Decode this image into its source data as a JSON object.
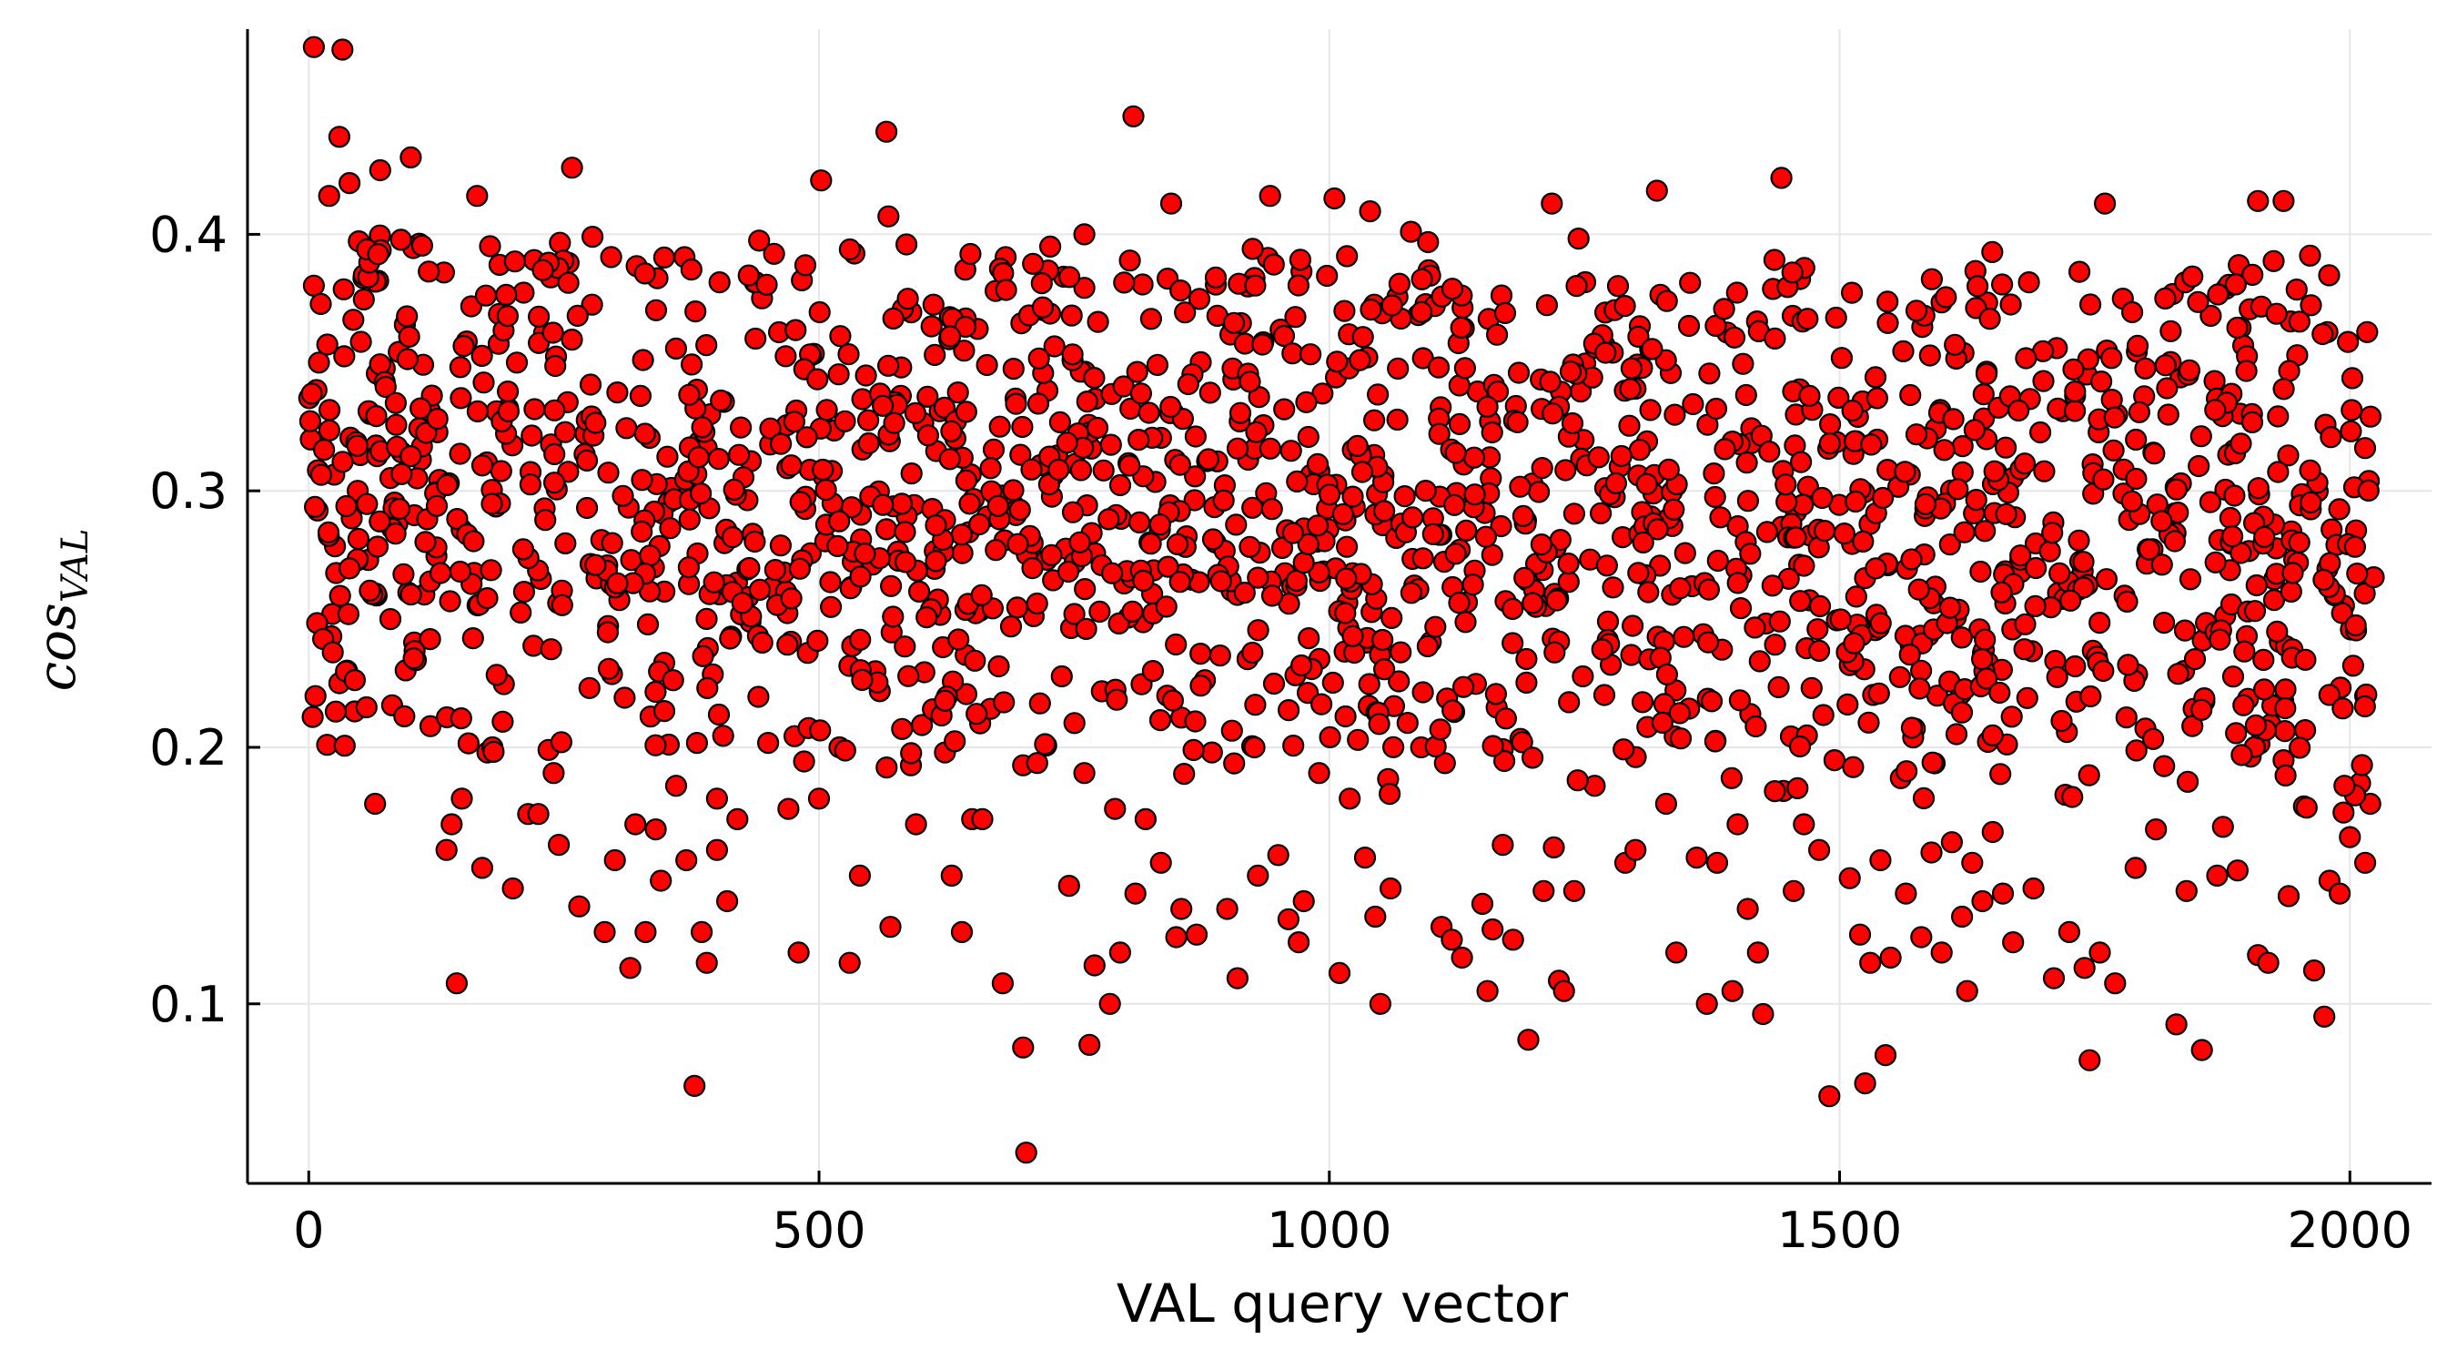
{
  "chart_data": {
    "type": "scatter",
    "title": "",
    "xlabel": "VAL query vector",
    "ylabel": "cos",
    "ylabel_subscript": "VAL",
    "xlim": [
      -60,
      2080
    ],
    "ylim": [
      0.03,
      0.48
    ],
    "xticks": [
      0,
      500,
      1000,
      1500,
      2000
    ],
    "xtick_labels": [
      "0",
      "500",
      "1000",
      "1500",
      "2000"
    ],
    "yticks": [
      0.1,
      0.2,
      0.3,
      0.4
    ],
    "ytick_labels": [
      "0.1",
      "0.2",
      "0.3",
      "0.4"
    ],
    "grid": true,
    "legend": "none",
    "marker_color": "#ff0000",
    "marker_edge_color": "#000000",
    "series": [
      {
        "n_points": 2023,
        "points": [
          [
            5,
            0.473
          ],
          [
            33,
            0.472
          ],
          [
            808,
            0.446
          ],
          [
            566,
            0.44
          ],
          [
            30,
            0.438
          ],
          [
            100,
            0.43
          ],
          [
            258,
            0.426
          ],
          [
            20,
            0.415
          ],
          [
            165,
            0.415
          ],
          [
            502,
            0.421
          ],
          [
            1443,
            0.422
          ],
          [
            1321,
            0.417
          ],
          [
            1935,
            0.413
          ],
          [
            1760,
            0.412
          ],
          [
            1005,
            0.414
          ],
          [
            942,
            0.415
          ],
          [
            1218,
            0.412
          ],
          [
            845,
            0.412
          ],
          [
            1910,
            0.413
          ],
          [
            568,
            0.407
          ],
          [
            1080,
            0.401
          ],
          [
            760,
            0.4
          ],
          [
            1040,
            0.409
          ],
          [
            5,
            0.38
          ],
          [
            40,
            0.42
          ],
          [
            70,
            0.425
          ],
          [
            10,
            0.35
          ],
          [
            60,
            0.33
          ],
          [
            2,
            0.32
          ],
          [
            15,
            0.316
          ],
          [
            48,
            0.3
          ],
          [
            80,
            0.305
          ],
          [
            23,
            0.252
          ],
          [
            30,
            0.225
          ],
          [
            45,
            0.214
          ],
          [
            18,
            0.201
          ],
          [
            65,
            0.178
          ],
          [
            80,
            0.25
          ],
          [
            95,
            0.23
          ],
          [
            105,
            0.234
          ],
          [
            150,
            0.18
          ],
          [
            140,
            0.17
          ],
          [
            135,
            0.16
          ],
          [
            145,
            0.108
          ],
          [
            170,
            0.153
          ],
          [
            175,
            0.198
          ],
          [
            180,
            0.2
          ],
          [
            190,
            0.21
          ],
          [
            200,
            0.145
          ],
          [
            215,
            0.174
          ],
          [
            225,
            0.174
          ],
          [
            235,
            0.199
          ],
          [
            240,
            0.19
          ],
          [
            245,
            0.162
          ],
          [
            265,
            0.138
          ],
          [
            290,
            0.128
          ],
          [
            300,
            0.156
          ],
          [
            315,
            0.114
          ],
          [
            320,
            0.17
          ],
          [
            330,
            0.128
          ],
          [
            340,
            0.168
          ],
          [
            345,
            0.148
          ],
          [
            360,
            0.185
          ],
          [
            370,
            0.156
          ],
          [
            378,
            0.068
          ],
          [
            385,
            0.128
          ],
          [
            390,
            0.116
          ],
          [
            400,
            0.16
          ],
          [
            410,
            0.14
          ],
          [
            420,
            0.172
          ],
          [
            400,
            0.18
          ],
          [
            470,
            0.176
          ],
          [
            480,
            0.12
          ],
          [
            500,
            0.18
          ],
          [
            520,
            0.2
          ],
          [
            530,
            0.116
          ],
          [
            540,
            0.15
          ],
          [
            570,
            0.13
          ],
          [
            590,
            0.193
          ],
          [
            595,
            0.17
          ],
          [
            630,
            0.15
          ],
          [
            640,
            0.128
          ],
          [
            650,
            0.172
          ],
          [
            660,
            0.172
          ],
          [
            680,
            0.108
          ],
          [
            700,
            0.083
          ],
          [
            703,
            0.042
          ],
          [
            700,
            0.193
          ],
          [
            745,
            0.146
          ],
          [
            760,
            0.19
          ],
          [
            765,
            0.084
          ],
          [
            770,
            0.115
          ],
          [
            785,
            0.1
          ],
          [
            790,
            0.176
          ],
          [
            795,
            0.12
          ],
          [
            810,
            0.143
          ],
          [
            820,
            0.172
          ],
          [
            835,
            0.155
          ],
          [
            850,
            0.126
          ],
          [
            855,
            0.137
          ],
          [
            870,
            0.127
          ],
          [
            885,
            0.198
          ],
          [
            900,
            0.137
          ],
          [
            910,
            0.11
          ],
          [
            930,
            0.15
          ],
          [
            950,
            0.158
          ],
          [
            960,
            0.133
          ],
          [
            970,
            0.124
          ],
          [
            975,
            0.14
          ],
          [
            990,
            0.19
          ],
          [
            1010,
            0.112
          ],
          [
            1020,
            0.18
          ],
          [
            1035,
            0.157
          ],
          [
            1045,
            0.134
          ],
          [
            1050,
            0.1
          ],
          [
            1060,
            0.145
          ],
          [
            1090,
            0.2
          ],
          [
            1110,
            0.13
          ],
          [
            1120,
            0.125
          ],
          [
            1130,
            0.118
          ],
          [
            1150,
            0.139
          ],
          [
            1155,
            0.105
          ],
          [
            1160,
            0.129
          ],
          [
            1170,
            0.162
          ],
          [
            1180,
            0.125
          ],
          [
            1195,
            0.086
          ],
          [
            1210,
            0.144
          ],
          [
            1220,
            0.161
          ],
          [
            1225,
            0.109
          ],
          [
            1230,
            0.105
          ],
          [
            1240,
            0.144
          ],
          [
            1260,
            0.185
          ],
          [
            1290,
            0.155
          ],
          [
            1300,
            0.16
          ],
          [
            1330,
            0.178
          ],
          [
            1340,
            0.12
          ],
          [
            1360,
            0.157
          ],
          [
            1370,
            0.1
          ],
          [
            1380,
            0.155
          ],
          [
            1395,
            0.105
          ],
          [
            1400,
            0.17
          ],
          [
            1410,
            0.137
          ],
          [
            1420,
            0.12
          ],
          [
            1425,
            0.096
          ],
          [
            1445,
            0.183
          ],
          [
            1455,
            0.144
          ],
          [
            1465,
            0.17
          ],
          [
            1480,
            0.16
          ],
          [
            1490,
            0.064
          ],
          [
            1495,
            0.195
          ],
          [
            1510,
            0.149
          ],
          [
            1520,
            0.127
          ],
          [
            1525,
            0.069
          ],
          [
            1530,
            0.116
          ],
          [
            1540,
            0.156
          ],
          [
            1545,
            0.08
          ],
          [
            1550,
            0.118
          ],
          [
            1560,
            0.188
          ],
          [
            1565,
            0.143
          ],
          [
            1580,
            0.126
          ],
          [
            1590,
            0.159
          ],
          [
            1600,
            0.12
          ],
          [
            1610,
            0.163
          ],
          [
            1620,
            0.134
          ],
          [
            1625,
            0.105
          ],
          [
            1630,
            0.155
          ],
          [
            1640,
            0.14
          ],
          [
            1650,
            0.167
          ],
          [
            1660,
            0.143
          ],
          [
            1670,
            0.124
          ],
          [
            1690,
            0.145
          ],
          [
            1710,
            0.11
          ],
          [
            1725,
            0.128
          ],
          [
            1740,
            0.114
          ],
          [
            1745,
            0.078
          ],
          [
            1755,
            0.12
          ],
          [
            1770,
            0.108
          ],
          [
            1790,
            0.153
          ],
          [
            1810,
            0.168
          ],
          [
            1830,
            0.092
          ],
          [
            1840,
            0.144
          ],
          [
            1855,
            0.082
          ],
          [
            1870,
            0.15
          ],
          [
            1890,
            0.152
          ],
          [
            1910,
            0.119
          ],
          [
            1920,
            0.116
          ],
          [
            1935,
            0.195
          ],
          [
            1940,
            0.142
          ],
          [
            1955,
            0.177
          ],
          [
            1965,
            0.113
          ],
          [
            1975,
            0.095
          ],
          [
            1980,
            0.148
          ],
          [
            1990,
            0.143
          ],
          [
            2000,
            0.165
          ],
          [
            2010,
            0.186
          ],
          [
            2015,
            0.155
          ],
          [
            2020,
            0.178
          ],
          [
            2015,
            0.22
          ]
        ],
        "bulk_bands": [
          {
            "x": [
              0,
              2025
            ],
            "y": [
              0.24,
              0.4
            ],
            "count": 1200
          },
          {
            "x": [
              0,
              2025
            ],
            "y": [
              0.2,
              0.24
            ],
            "count": 230
          },
          {
            "x": [
              0,
              2025
            ],
            "y": [
              0.26,
              0.34
            ],
            "count": 380
          }
        ]
      }
    ]
  }
}
